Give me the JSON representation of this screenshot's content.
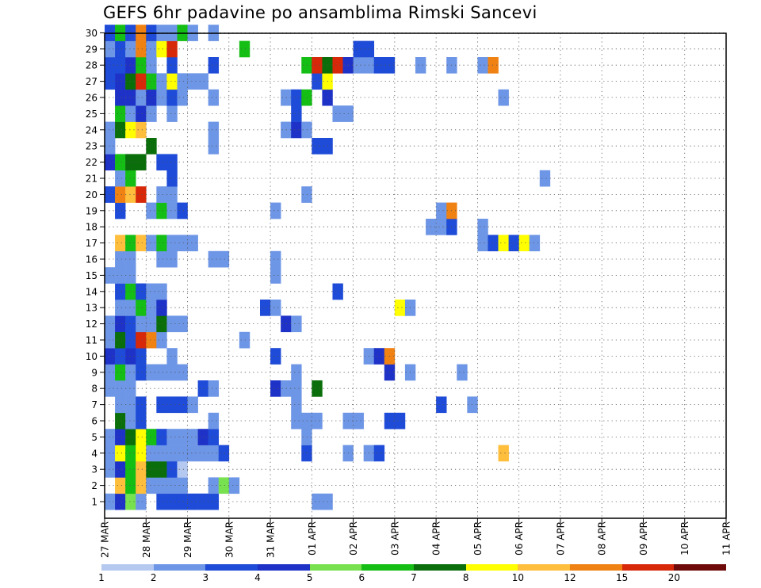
{
  "chart_data": {
    "type": "heatmap",
    "title": "GEFS 6hr padavine po ansamblima Rimski Sancevi",
    "xlabel": "",
    "ylabel": "",
    "x_tick_labels": [
      "27 MAR",
      "28 MAR",
      "29 MAR",
      "30 MAR",
      "31 MAR",
      "01 APR",
      "02 APR",
      "03 APR",
      "04 APR",
      "05 APR",
      "06 APR",
      "07 APR",
      "08 APR",
      "09 APR",
      "10 APR",
      "11 APR"
    ],
    "x_range_days": [
      0,
      15
    ],
    "steps_per_day": 4,
    "members": [
      1,
      2,
      3,
      4,
      5,
      6,
      7,
      8,
      9,
      10,
      11,
      12,
      13,
      14,
      15,
      16,
      17,
      18,
      19,
      20,
      21,
      22,
      23,
      24,
      25,
      26,
      27,
      28,
      29,
      30
    ],
    "grid": "dotted",
    "colorbar": {
      "levels": [
        "1",
        "2",
        "3",
        "4",
        "5",
        "6",
        "7",
        "8",
        "10",
        "12",
        "15",
        "20"
      ],
      "colors": [
        "#b4c8f0",
        "#6e96e6",
        "#1e4bd7",
        "#1e32c8",
        "#78e150",
        "#14be14",
        "#0a6e0a",
        "#ffff00",
        "#ffbe3c",
        "#f08214",
        "#d7280a",
        "#6e0a0a"
      ]
    },
    "cells": [
      [
        1,
        0,
        1
      ],
      [
        1,
        1,
        3
      ],
      [
        1,
        2,
        4
      ],
      [
        1,
        3,
        1
      ],
      [
        1,
        5,
        2
      ],
      [
        1,
        6,
        2
      ],
      [
        1,
        7,
        2
      ],
      [
        1,
        8,
        2
      ],
      [
        1,
        9,
        2
      ],
      [
        1,
        10,
        2
      ],
      [
        1,
        20,
        1
      ],
      [
        1,
        21,
        1
      ],
      [
        2,
        1,
        8
      ],
      [
        2,
        2,
        5
      ],
      [
        2,
        3,
        8
      ],
      [
        2,
        4,
        1
      ],
      [
        2,
        5,
        1
      ],
      [
        2,
        6,
        1
      ],
      [
        2,
        7,
        1
      ],
      [
        2,
        10,
        1
      ],
      [
        2,
        11,
        4
      ],
      [
        2,
        12,
        1
      ],
      [
        3,
        0,
        1
      ],
      [
        3,
        1,
        3
      ],
      [
        3,
        2,
        5
      ],
      [
        3,
        3,
        8
      ],
      [
        3,
        4,
        6
      ],
      [
        3,
        5,
        6
      ],
      [
        3,
        6,
        2
      ],
      [
        3,
        7,
        0
      ],
      [
        4,
        0,
        1
      ],
      [
        4,
        1,
        7
      ],
      [
        4,
        2,
        5
      ],
      [
        4,
        3,
        7
      ],
      [
        4,
        4,
        1
      ],
      [
        4,
        5,
        1
      ],
      [
        4,
        6,
        1
      ],
      [
        4,
        7,
        1
      ],
      [
        4,
        8,
        1
      ],
      [
        4,
        9,
        1
      ],
      [
        4,
        10,
        1
      ],
      [
        4,
        11,
        2
      ],
      [
        4,
        19,
        2
      ],
      [
        4,
        23,
        1
      ],
      [
        4,
        25,
        1
      ],
      [
        4,
        26,
        2
      ],
      [
        4,
        38,
        8
      ],
      [
        5,
        0,
        1
      ],
      [
        5,
        1,
        3
      ],
      [
        5,
        2,
        6
      ],
      [
        5,
        3,
        7
      ],
      [
        5,
        4,
        5
      ],
      [
        5,
        5,
        2
      ],
      [
        5,
        6,
        1
      ],
      [
        5,
        7,
        1
      ],
      [
        5,
        8,
        1
      ],
      [
        5,
        9,
        3
      ],
      [
        5,
        10,
        2
      ],
      [
        5,
        19,
        1
      ],
      [
        6,
        1,
        6
      ],
      [
        6,
        2,
        1
      ],
      [
        6,
        3,
        2
      ],
      [
        6,
        10,
        1
      ],
      [
        6,
        18,
        1
      ],
      [
        6,
        19,
        1
      ],
      [
        6,
        20,
        1
      ],
      [
        6,
        23,
        1
      ],
      [
        6,
        24,
        1
      ],
      [
        6,
        27,
        2
      ],
      [
        6,
        28,
        2
      ],
      [
        7,
        1,
        1
      ],
      [
        7,
        2,
        1
      ],
      [
        7,
        3,
        2
      ],
      [
        7,
        5,
        2
      ],
      [
        7,
        6,
        2
      ],
      [
        7,
        7,
        2
      ],
      [
        7,
        8,
        1
      ],
      [
        7,
        18,
        1
      ],
      [
        7,
        32,
        2
      ],
      [
        7,
        35,
        1
      ],
      [
        8,
        0,
        1
      ],
      [
        8,
        1,
        1
      ],
      [
        8,
        2,
        1
      ],
      [
        8,
        9,
        2
      ],
      [
        8,
        10,
        1
      ],
      [
        8,
        16,
        3
      ],
      [
        8,
        17,
        1
      ],
      [
        8,
        18,
        1
      ],
      [
        8,
        20,
        6
      ],
      [
        9,
        0,
        1
      ],
      [
        9,
        1,
        5
      ],
      [
        9,
        2,
        1
      ],
      [
        9,
        3,
        2
      ],
      [
        9,
        4,
        1
      ],
      [
        9,
        5,
        1
      ],
      [
        9,
        6,
        1
      ],
      [
        9,
        7,
        1
      ],
      [
        9,
        18,
        1
      ],
      [
        9,
        27,
        3
      ],
      [
        9,
        29,
        1
      ],
      [
        9,
        34,
        1
      ],
      [
        10,
        0,
        3
      ],
      [
        10,
        1,
        2
      ],
      [
        10,
        2,
        3
      ],
      [
        10,
        3,
        2
      ],
      [
        10,
        6,
        1
      ],
      [
        10,
        16,
        2
      ],
      [
        10,
        25,
        1
      ],
      [
        10,
        26,
        3
      ],
      [
        10,
        27,
        9
      ],
      [
        11,
        0,
        1
      ],
      [
        11,
        1,
        6
      ],
      [
        11,
        2,
        2
      ],
      [
        11,
        3,
        10
      ],
      [
        11,
        4,
        9
      ],
      [
        11,
        5,
        1
      ],
      [
        11,
        13,
        1
      ],
      [
        12,
        0,
        1
      ],
      [
        12,
        1,
        3
      ],
      [
        12,
        2,
        2
      ],
      [
        12,
        3,
        1
      ],
      [
        12,
        4,
        1
      ],
      [
        12,
        5,
        6
      ],
      [
        12,
        6,
        1
      ],
      [
        12,
        7,
        1
      ],
      [
        12,
        17,
        3
      ],
      [
        12,
        18,
        1
      ],
      [
        13,
        1,
        1
      ],
      [
        13,
        2,
        1
      ],
      [
        13,
        3,
        5
      ],
      [
        13,
        4,
        1
      ],
      [
        13,
        5,
        3
      ],
      [
        13,
        15,
        2
      ],
      [
        13,
        16,
        1
      ],
      [
        13,
        28,
        7
      ],
      [
        13,
        29,
        1
      ],
      [
        14,
        1,
        2
      ],
      [
        14,
        2,
        5
      ],
      [
        14,
        3,
        2
      ],
      [
        14,
        4,
        1
      ],
      [
        14,
        5,
        1
      ],
      [
        14,
        22,
        2
      ],
      [
        15,
        0,
        1
      ],
      [
        15,
        1,
        1
      ],
      [
        15,
        2,
        1
      ],
      [
        15,
        16,
        1
      ],
      [
        16,
        1,
        1
      ],
      [
        16,
        2,
        1
      ],
      [
        16,
        5,
        1
      ],
      [
        16,
        6,
        1
      ],
      [
        16,
        10,
        1
      ],
      [
        16,
        11,
        1
      ],
      [
        16,
        16,
        1
      ],
      [
        17,
        1,
        8
      ],
      [
        17,
        2,
        5
      ],
      [
        17,
        3,
        8
      ],
      [
        17,
        4,
        1
      ],
      [
        17,
        5,
        5
      ],
      [
        17,
        6,
        1
      ],
      [
        17,
        7,
        1
      ],
      [
        17,
        8,
        1
      ],
      [
        17,
        36,
        1
      ],
      [
        17,
        37,
        2
      ],
      [
        17,
        38,
        7
      ],
      [
        17,
        39,
        2
      ],
      [
        17,
        40,
        7
      ],
      [
        17,
        41,
        1
      ],
      [
        18,
        31,
        1
      ],
      [
        18,
        32,
        1
      ],
      [
        18,
        33,
        2
      ],
      [
        18,
        36,
        1
      ],
      [
        19,
        1,
        2
      ],
      [
        19,
        4,
        1
      ],
      [
        19,
        5,
        5
      ],
      [
        19,
        6,
        1
      ],
      [
        19,
        7,
        2
      ],
      [
        19,
        16,
        1
      ],
      [
        19,
        32,
        1
      ],
      [
        19,
        33,
        9
      ],
      [
        20,
        0,
        2
      ],
      [
        20,
        1,
        9
      ],
      [
        20,
        2,
        8
      ],
      [
        20,
        3,
        10
      ],
      [
        20,
        5,
        1
      ],
      [
        20,
        6,
        1
      ],
      [
        20,
        19,
        1
      ],
      [
        21,
        1,
        1
      ],
      [
        21,
        2,
        5
      ],
      [
        21,
        6,
        2
      ],
      [
        21,
        42,
        1
      ],
      [
        22,
        0,
        3
      ],
      [
        22,
        1,
        5
      ],
      [
        22,
        2,
        6
      ],
      [
        22,
        3,
        6
      ],
      [
        22,
        5,
        2
      ],
      [
        22,
        6,
        2
      ],
      [
        23,
        0,
        1
      ],
      [
        23,
        4,
        6
      ],
      [
        23,
        10,
        1
      ],
      [
        23,
        20,
        2
      ],
      [
        23,
        21,
        2
      ],
      [
        24,
        0,
        1
      ],
      [
        24,
        1,
        6
      ],
      [
        24,
        2,
        7
      ],
      [
        24,
        3,
        8
      ],
      [
        24,
        10,
        1
      ],
      [
        24,
        17,
        1
      ],
      [
        24,
        18,
        3
      ],
      [
        24,
        19,
        1
      ],
      [
        25,
        1,
        5
      ],
      [
        25,
        2,
        1
      ],
      [
        25,
        3,
        3
      ],
      [
        25,
        4,
        1
      ],
      [
        25,
        6,
        1
      ],
      [
        25,
        18,
        2
      ],
      [
        25,
        22,
        1
      ],
      [
        25,
        23,
        1
      ],
      [
        26,
        1,
        3
      ],
      [
        26,
        2,
        3
      ],
      [
        26,
        3,
        1
      ],
      [
        26,
        4,
        3
      ],
      [
        26,
        5,
        1
      ],
      [
        26,
        6,
        2
      ],
      [
        26,
        7,
        1
      ],
      [
        26,
        10,
        1
      ],
      [
        26,
        17,
        1
      ],
      [
        26,
        18,
        2
      ],
      [
        26,
        19,
        5
      ],
      [
        26,
        21,
        3
      ],
      [
        26,
        38,
        1
      ],
      [
        27,
        0,
        2
      ],
      [
        27,
        1,
        3
      ],
      [
        27,
        2,
        6
      ],
      [
        27,
        3,
        10
      ],
      [
        27,
        4,
        5
      ],
      [
        27,
        5,
        1
      ],
      [
        27,
        6,
        7
      ],
      [
        27,
        7,
        1
      ],
      [
        27,
        8,
        1
      ],
      [
        27,
        9,
        1
      ],
      [
        27,
        20,
        2
      ],
      [
        27,
        21,
        7
      ],
      [
        28,
        0,
        2
      ],
      [
        28,
        1,
        2
      ],
      [
        28,
        2,
        3
      ],
      [
        28,
        3,
        5
      ],
      [
        28,
        4,
        1
      ],
      [
        28,
        6,
        2
      ],
      [
        28,
        10,
        2
      ],
      [
        28,
        19,
        5
      ],
      [
        28,
        20,
        10
      ],
      [
        28,
        21,
        6
      ],
      [
        28,
        22,
        10
      ],
      [
        28,
        23,
        3
      ],
      [
        28,
        24,
        1
      ],
      [
        28,
        25,
        1
      ],
      [
        28,
        26,
        2
      ],
      [
        28,
        27,
        2
      ],
      [
        28,
        30,
        1
      ],
      [
        28,
        33,
        1
      ],
      [
        28,
        36,
        1
      ],
      [
        28,
        37,
        9
      ],
      [
        29,
        0,
        1
      ],
      [
        29,
        1,
        2
      ],
      [
        29,
        2,
        1
      ],
      [
        29,
        3,
        9
      ],
      [
        29,
        4,
        1
      ],
      [
        29,
        5,
        7
      ],
      [
        29,
        6,
        10
      ],
      [
        29,
        13,
        5
      ],
      [
        29,
        24,
        2
      ],
      [
        29,
        25,
        2
      ],
      [
        30,
        0,
        2
      ],
      [
        30,
        1,
        5
      ],
      [
        30,
        2,
        2
      ],
      [
        30,
        3,
        9
      ],
      [
        30,
        4,
        2
      ],
      [
        30,
        5,
        1
      ],
      [
        30,
        6,
        1
      ],
      [
        30,
        7,
        5
      ],
      [
        30,
        8,
        1
      ],
      [
        30,
        10,
        1
      ]
    ]
  }
}
